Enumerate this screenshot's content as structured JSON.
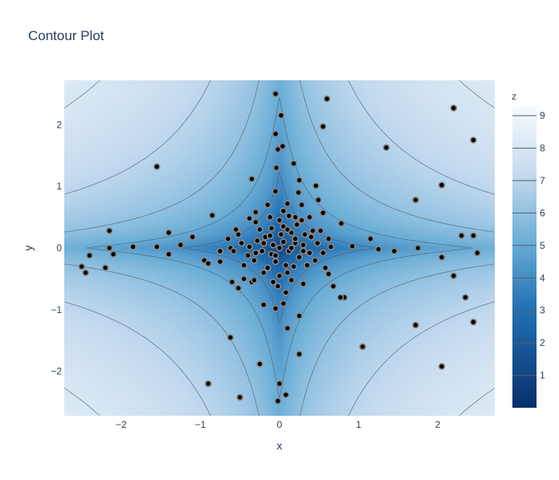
{
  "chart_data": {
    "type": "contour",
    "title": "Contour Plot",
    "xlabel": "x",
    "ylabel": "y",
    "xlim": [
      -2.72,
      2.72
    ],
    "ylim": [
      -2.72,
      2.72
    ],
    "x_ticks": [
      -2,
      -1,
      0,
      1,
      2
    ],
    "y_ticks": [
      -2,
      -1,
      0,
      1,
      2
    ],
    "colorbar": {
      "title": "z",
      "range": [
        0,
        9.3
      ],
      "ticks": [
        1,
        2,
        3,
        4,
        5,
        6,
        7,
        8,
        9
      ],
      "colorscale": [
        [
          "0",
          "#08306b"
        ],
        [
          "0.33",
          "#2171b5"
        ],
        [
          "0.55",
          "#6baed6"
        ],
        [
          "0.78",
          "#c6dbef"
        ],
        [
          "1",
          "#f7fbff"
        ]
      ]
    },
    "z_formula": "log-like distance from the axes: low (dark) near x=0 and y=0, high (light) far from both axes",
    "scatter_points": [
      [
        -0.05,
        2.5
      ],
      [
        0.6,
        2.42
      ],
      [
        0.02,
        2.15
      ],
      [
        2.2,
        2.27
      ],
      [
        -0.05,
        1.85
      ],
      [
        0.55,
        1.97
      ],
      [
        2.45,
        1.75
      ],
      [
        0.04,
        1.65
      ],
      [
        -0.02,
        1.6
      ],
      [
        1.35,
        1.63
      ],
      [
        -1.55,
        1.32
      ],
      [
        -0.04,
        1.3
      ],
      [
        0.18,
        1.37
      ],
      [
        -0.35,
        1.12
      ],
      [
        0.25,
        1.1
      ],
      [
        0.46,
        1.01
      ],
      [
        2.05,
        1.02
      ],
      [
        -0.05,
        0.92
      ],
      [
        0.24,
        0.9
      ],
      [
        0.49,
        0.78
      ],
      [
        1.72,
        0.78
      ],
      [
        -0.15,
        0.7
      ],
      [
        0.1,
        0.72
      ],
      [
        0.28,
        0.7
      ],
      [
        0.55,
        0.57
      ],
      [
        -0.3,
        0.58
      ],
      [
        -0.85,
        0.53
      ],
      [
        0.2,
        0.5
      ],
      [
        0.78,
        0.4
      ],
      [
        -0.55,
        0.3
      ],
      [
        0.42,
        0.28
      ],
      [
        -2.15,
        0.28
      ],
      [
        -1.4,
        0.25
      ],
      [
        1.15,
        0.15
      ],
      [
        2.3,
        0.2
      ],
      [
        2.45,
        0.2
      ],
      [
        -1.1,
        0.18
      ],
      [
        -1.25,
        0.05
      ],
      [
        -1.55,
        0.02
      ],
      [
        -1.85,
        0.02
      ],
      [
        -2.15,
        0.0
      ],
      [
        -2.4,
        -0.12
      ],
      [
        -2.1,
        -0.1
      ],
      [
        -1.4,
        -0.1
      ],
      [
        -0.95,
        -0.2
      ],
      [
        -0.75,
        -0.05
      ],
      [
        -0.62,
        0.0
      ],
      [
        0.92,
        0.03
      ],
      [
        1.25,
        -0.02
      ],
      [
        1.45,
        -0.05
      ],
      [
        1.75,
        0.0
      ],
      [
        2.05,
        -0.15
      ],
      [
        2.5,
        -0.08
      ],
      [
        -2.5,
        -0.3
      ],
      [
        -2.45,
        -0.4
      ],
      [
        -2.2,
        -0.32
      ],
      [
        -0.9,
        -0.25
      ],
      [
        -0.75,
        -0.22
      ],
      [
        -0.6,
        -0.55
      ],
      [
        -0.52,
        -0.65
      ],
      [
        -0.45,
        -0.5
      ],
      [
        -0.35,
        -0.55
      ],
      [
        0.62,
        -0.42
      ],
      [
        0.68,
        -0.62
      ],
      [
        0.82,
        -0.8
      ],
      [
        0.77,
        -0.8
      ],
      [
        2.2,
        -0.45
      ],
      [
        -0.2,
        -0.92
      ],
      [
        -0.05,
        -0.98
      ],
      [
        0.05,
        -0.9
      ],
      [
        0.08,
        -0.72
      ],
      [
        0.25,
        -1.1
      ],
      [
        1.72,
        -1.25
      ],
      [
        2.45,
        -1.2
      ],
      [
        2.35,
        -0.8
      ],
      [
        0.1,
        -1.3
      ],
      [
        -0.62,
        -1.45
      ],
      [
        1.05,
        -1.6
      ],
      [
        0.25,
        -1.72
      ],
      [
        -0.25,
        -1.88
      ],
      [
        2.05,
        -1.92
      ],
      [
        -0.9,
        -2.2
      ],
      [
        0.0,
        -2.2
      ],
      [
        -0.5,
        -2.42
      ],
      [
        0.08,
        -2.38
      ],
      [
        -0.02,
        -2.48
      ],
      [
        0.0,
        0.0
      ],
      [
        0.05,
        0.1
      ],
      [
        -0.08,
        0.05
      ],
      [
        0.12,
        -0.05
      ],
      [
        -0.1,
        -0.1
      ],
      [
        0.02,
        0.22
      ],
      [
        0.2,
        0.08
      ],
      [
        -0.18,
        0.18
      ],
      [
        0.15,
        0.25
      ],
      [
        -0.22,
        -0.05
      ],
      [
        0.25,
        -0.15
      ],
      [
        -0.05,
        -0.22
      ],
      [
        0.08,
        -0.28
      ],
      [
        -0.28,
        0.12
      ],
      [
        0.3,
        0.05
      ],
      [
        0.32,
        0.22
      ],
      [
        -0.32,
        -0.2
      ],
      [
        0.18,
        -0.3
      ],
      [
        -0.15,
        -0.32
      ],
      [
        0.05,
        0.35
      ],
      [
        -0.1,
        0.32
      ],
      [
        0.38,
        -0.08
      ],
      [
        -0.38,
        0.02
      ],
      [
        0.22,
        0.38
      ],
      [
        -0.25,
        0.3
      ],
      [
        0.4,
        0.18
      ],
      [
        -0.4,
        -0.12
      ],
      [
        0.1,
        -0.4
      ],
      [
        -0.2,
        -0.4
      ],
      [
        0.35,
        -0.28
      ],
      [
        0.48,
        0.08
      ],
      [
        -0.48,
        0.08
      ],
      [
        0.0,
        0.45
      ],
      [
        0.0,
        -0.45
      ],
      [
        0.28,
        0.45
      ],
      [
        -0.3,
        0.42
      ],
      [
        0.45,
        -0.2
      ],
      [
        -0.45,
        -0.28
      ],
      [
        0.12,
        0.52
      ],
      [
        -0.12,
        0.5
      ],
      [
        0.52,
        0.28
      ],
      [
        -0.52,
        0.22
      ],
      [
        0.15,
        -0.52
      ],
      [
        -0.08,
        -0.55
      ],
      [
        0.55,
        -0.08
      ],
      [
        -0.58,
        -0.05
      ],
      [
        0.38,
        0.5
      ],
      [
        -0.38,
        0.48
      ],
      [
        0.62,
        0.15
      ],
      [
        -0.65,
        0.15
      ],
      [
        0.65,
        0.02
      ],
      [
        0.05,
        0.6
      ],
      [
        -0.02,
        -0.62
      ],
      [
        0.3,
        -0.58
      ],
      [
        -0.32,
        -0.52
      ],
      [
        0.58,
        -0.32
      ],
      [
        0.2,
        0.15
      ],
      [
        -0.12,
        0.2
      ],
      [
        0.3,
        -0.05
      ],
      [
        -0.3,
        -0.08
      ],
      [
        0.1,
        0.3
      ],
      [
        -0.05,
        -0.12
      ],
      [
        0.15,
        0.0
      ],
      [
        -0.2,
        0.08
      ]
    ],
    "grid": false,
    "legend": "colorbar-right"
  }
}
